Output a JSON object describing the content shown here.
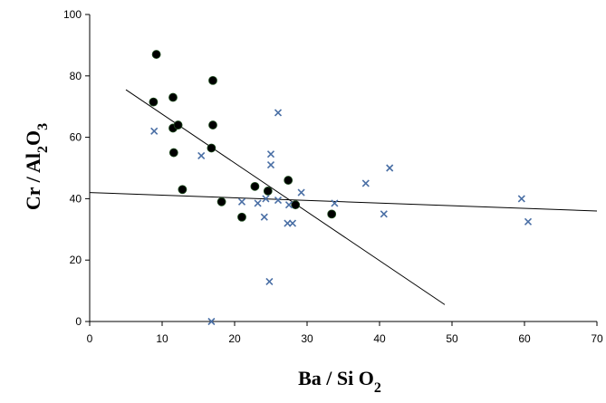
{
  "chart_data": {
    "type": "scatter",
    "title": "",
    "xlabel": {
      "base": "Ba / Si O",
      "sub": "2"
    },
    "ylabel": {
      "base1": "Cr / Al",
      "sub1": "2",
      "base2": "O",
      "sub2": "3"
    },
    "xlim": [
      0,
      70
    ],
    "ylim": [
      0,
      100
    ],
    "xticks": [
      0,
      10,
      20,
      30,
      40,
      50,
      60,
      70
    ],
    "yticks": [
      0,
      20,
      40,
      60,
      80,
      100
    ],
    "grid": false,
    "legend": "none",
    "series": [
      {
        "marker": "filled-circle",
        "color": "#000000",
        "points": [
          [
            9.2,
            87
          ],
          [
            8.8,
            71.5
          ],
          [
            11.5,
            73
          ],
          [
            11.5,
            63
          ],
          [
            11.6,
            55
          ],
          [
            12.2,
            64
          ],
          [
            12.8,
            43
          ],
          [
            17,
            78.5
          ],
          [
            17,
            64
          ],
          [
            16.8,
            56.5
          ],
          [
            18.2,
            39
          ],
          [
            21,
            34
          ],
          [
            22.8,
            44
          ],
          [
            24.6,
            42.5
          ],
          [
            27.4,
            46
          ],
          [
            28.4,
            38
          ],
          [
            33.4,
            35
          ]
        ]
      },
      {
        "marker": "x-cross",
        "color": "#4a6fa5",
        "points": [
          [
            8.9,
            62
          ],
          [
            15.4,
            54
          ],
          [
            16.8,
            0
          ],
          [
            21,
            39
          ],
          [
            23.2,
            38.5
          ],
          [
            24.1,
            34
          ],
          [
            24.3,
            40
          ],
          [
            24.8,
            13
          ],
          [
            25,
            54.5
          ],
          [
            25,
            51
          ],
          [
            26,
            68
          ],
          [
            26,
            39.5
          ],
          [
            27.3,
            32
          ],
          [
            27.5,
            38
          ],
          [
            28,
            32
          ],
          [
            29.2,
            42
          ],
          [
            33.8,
            38.5
          ],
          [
            38.1,
            45
          ],
          [
            40.6,
            35
          ],
          [
            41.4,
            50
          ],
          [
            59.6,
            40
          ],
          [
            60.5,
            32.5
          ]
        ]
      }
    ],
    "lines": [
      {
        "x": [
          5,
          49
        ],
        "y": [
          75.5,
          5.5
        ]
      },
      {
        "x": [
          0,
          70
        ],
        "y": [
          42,
          36
        ]
      }
    ]
  }
}
